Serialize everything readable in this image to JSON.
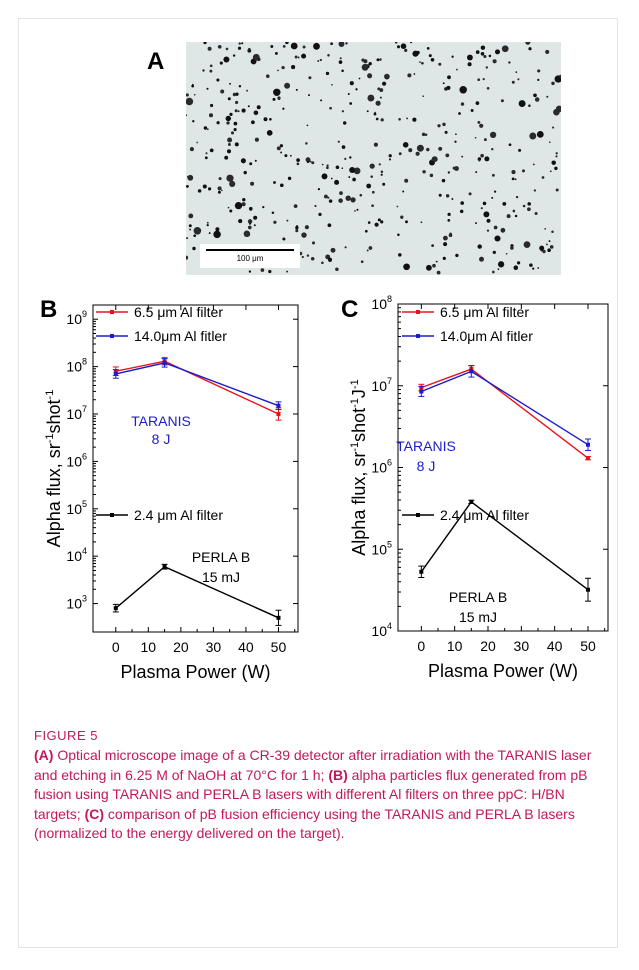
{
  "panels": {
    "a": "A",
    "b": "B",
    "c": "C"
  },
  "microscope": {
    "scale_label": "100 μm"
  },
  "figure_label": "FIGURE 5",
  "caption": [
    {
      "bold": "(A)",
      "text": " Optical microscope image of a CR-39 detector after irradiation with the TARANIS laser and etching in 6.25 M of NaOH at 70°C for 1 h; "
    },
    {
      "bold": "(B)",
      "text": " alpha particles flux generated from pB fusion using TARANIS and PERLA B lasers with different Al filters on three ppC: H/BN targets; "
    },
    {
      "bold": "(C)",
      "text": " comparison of pB fusion efficiency using the TARANIS and PERLA B lasers (normalized to the energy delivered on the target)."
    }
  ],
  "chart_data": [
    {
      "type": "line",
      "panel": "B",
      "xlabel": "Plasma Power (W)",
      "ylabel_main": "Alpha flux, sr",
      "ylabel_sup1": "-1",
      "ylabel_mid": "shot",
      "ylabel_sup2": "-1",
      "yscale": "log",
      "xlim": [
        -7,
        56
      ],
      "ylim_exp": [
        2.4,
        9.3
      ],
      "x_ticks": [
        0,
        10,
        20,
        30,
        40,
        50
      ],
      "y_tick_exps": [
        3,
        4,
        5,
        6,
        7,
        8,
        9
      ],
      "series": [
        {
          "name": "6.5 μm Al filter",
          "color": "#e8141c",
          "x": [
            0,
            15,
            50
          ],
          "y": [
            80000000,
            130000000,
            10000000
          ],
          "err_exp": [
            0.09,
            0.08,
            0.13
          ]
        },
        {
          "name": "14.0μm Al fitler",
          "color": "#1c1ccc",
          "x": [
            0,
            15,
            50
          ],
          "y": [
            70000000,
            120000000,
            15000000
          ],
          "err_exp": [
            0.09,
            0.09,
            0.08
          ]
        },
        {
          "name": "2.4 μm Al filter",
          "color": "#000000",
          "x": [
            0,
            15,
            50
          ],
          "y": [
            800,
            6000,
            500
          ],
          "err_exp": [
            0.08,
            0.05,
            0.16
          ]
        }
      ],
      "annotations": [
        {
          "text": "TARANIS",
          "color": "#1c1ccc"
        },
        {
          "text": "8 J",
          "color": "#1c1ccc"
        },
        {
          "text": "PERLA B",
          "color": "#000000"
        },
        {
          "text": "15 mJ",
          "color": "#000000"
        }
      ]
    },
    {
      "type": "line",
      "panel": "C",
      "xlabel": "Plasma Power (W)",
      "ylabel_main": "Alpha flux, sr",
      "ylabel_sup1": "-1",
      "ylabel_mid": "shot",
      "ylabel_sup2": "-1",
      "ylabel_tail": "J",
      "ylabel_sup3": "-1",
      "yscale": "log",
      "xlim": [
        -7,
        56
      ],
      "ylim_exp": [
        4,
        8
      ],
      "x_ticks": [
        0,
        10,
        20,
        30,
        40,
        50
      ],
      "y_tick_exps": [
        4,
        5,
        6,
        7,
        8
      ],
      "series": [
        {
          "name": "6.5 μm Al filter",
          "color": "#e8141c",
          "x": [
            0,
            15,
            50
          ],
          "y": [
            9500000,
            16000000,
            1300000
          ],
          "err_exp": [
            0.04,
            0.04,
            0.02
          ]
        },
        {
          "name": "14.0μm Al fitler",
          "color": "#1c1ccc",
          "x": [
            0,
            15,
            50
          ],
          "y": [
            8500000,
            15000000,
            1900000
          ],
          "err_exp": [
            0.06,
            0.07,
            0.07
          ]
        },
        {
          "name": "2.4 μm Al filter",
          "color": "#000000",
          "x": [
            0,
            15,
            50
          ],
          "y": [
            53000,
            380000,
            32000
          ],
          "err_exp": [
            0.07,
            0.02,
            0.14
          ]
        }
      ],
      "annotations": [
        {
          "text": "TARANIS",
          "color": "#1c1ccc"
        },
        {
          "text": "8 J",
          "color": "#1c1ccc"
        },
        {
          "text": "PERLA B",
          "color": "#000000"
        },
        {
          "text": "15 mJ",
          "color": "#000000"
        }
      ]
    }
  ]
}
